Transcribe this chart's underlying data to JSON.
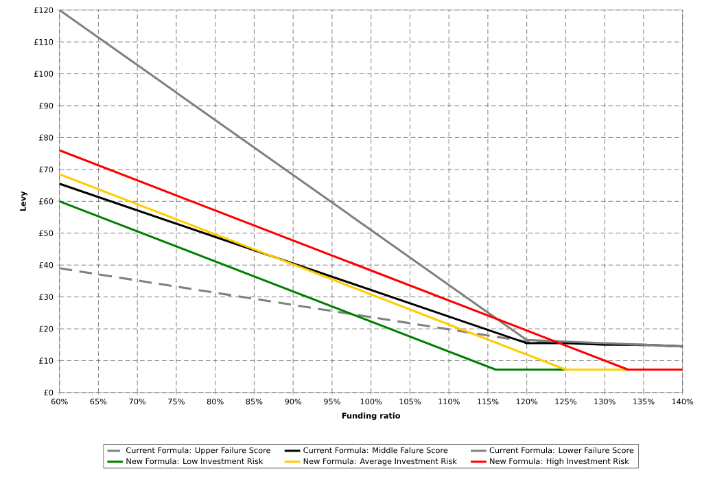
{
  "chart_data": {
    "type": "line",
    "xlabel": "Funding ratio",
    "ylabel": "Levy",
    "xlim": [
      60,
      140
    ],
    "ylim": [
      0,
      120
    ],
    "xticks": [
      {
        "value": 60,
        "label": "60%"
      },
      {
        "value": 65,
        "label": "65%"
      },
      {
        "value": 70,
        "label": "70%"
      },
      {
        "value": 75,
        "label": "75%"
      },
      {
        "value": 80,
        "label": "80%"
      },
      {
        "value": 85,
        "label": "85%"
      },
      {
        "value": 90,
        "label": "90%"
      },
      {
        "value": 95,
        "label": "95%"
      },
      {
        "value": 100,
        "label": "100%"
      },
      {
        "value": 105,
        "label": "105%"
      },
      {
        "value": 110,
        "label": "110%"
      },
      {
        "value": 115,
        "label": "115%"
      },
      {
        "value": 120,
        "label": "120%"
      },
      {
        "value": 125,
        "label": "125%"
      },
      {
        "value": 130,
        "label": "130%"
      },
      {
        "value": 135,
        "label": "135%"
      },
      {
        "value": 140,
        "label": "140%"
      }
    ],
    "yticks": [
      {
        "value": 0,
        "label": "£0"
      },
      {
        "value": 10,
        "label": "£10"
      },
      {
        "value": 20,
        "label": "£20"
      },
      {
        "value": 30,
        "label": "£30"
      },
      {
        "value": 40,
        "label": "£40"
      },
      {
        "value": 50,
        "label": "£50"
      },
      {
        "value": 60,
        "label": "£60"
      },
      {
        "value": 70,
        "label": "£70"
      },
      {
        "value": 80,
        "label": "£80"
      },
      {
        "value": 90,
        "label": "£90"
      },
      {
        "value": 100,
        "label": "£100"
      },
      {
        "value": 110,
        "label": "£110"
      },
      {
        "value": 120,
        "label": "£120"
      }
    ],
    "grid": true,
    "legend": "bottom",
    "marker": "none",
    "series": [
      {
        "name": "Current Formula: Upper Failure Score",
        "color": "#808080",
        "line_style": "dashed",
        "x": [
          60,
          120,
          140
        ],
        "values": [
          39,
          16,
          14.5
        ]
      },
      {
        "name": "Current Formula: Middle Falure Score",
        "color": "#000000",
        "x": [
          60,
          120,
          125,
          130,
          135,
          140
        ],
        "values": [
          65.5,
          15.5,
          15.5,
          15,
          15,
          14.5
        ]
      },
      {
        "name": "Current Formula: Lower Failure Score",
        "color": "#808080",
        "x": [
          60,
          120,
          125,
          130,
          135,
          140
        ],
        "values": [
          120,
          16.5,
          16,
          15.5,
          15,
          14.5
        ]
      },
      {
        "name": "New Formula: Low Investment Risk",
        "color": "#008000",
        "x": [
          60,
          116,
          140
        ],
        "values": [
          60,
          7.2,
          7.2
        ]
      },
      {
        "name": "New Formula: Average Investment Risk",
        "color": "#ffcc00",
        "x": [
          60,
          125,
          140
        ],
        "values": [
          68.5,
          7.2,
          7.2
        ]
      },
      {
        "name": "New Formula: High Investment Risk",
        "color": "#ff0000",
        "x": [
          60,
          133,
          140
        ],
        "values": [
          76,
          7.2,
          7.2
        ]
      }
    ]
  }
}
